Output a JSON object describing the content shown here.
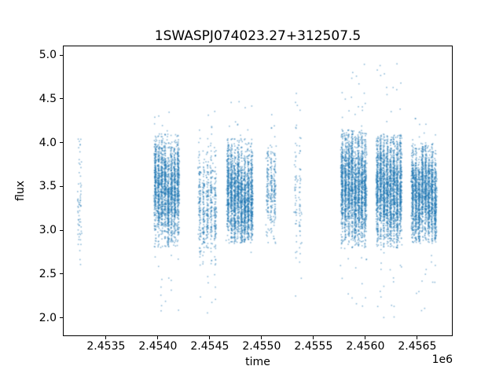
{
  "chart_data": {
    "type": "scatter",
    "title": "1SWASPJ074023.27+312507.5",
    "xlabel": "time",
    "ylabel": "flux",
    "x_offset_text": "1e6",
    "xlim": [
      2453084,
      2456842
    ],
    "ylim": [
      1.79,
      5.11
    ],
    "grid": false,
    "legend": null,
    "marker_color": "#1f77b4",
    "marker_alpha": 0.5,
    "marker_size_px": 1.6,
    "xticks": [
      {
        "label": "2.4535",
        "value": 2453500
      },
      {
        "label": "2.4540",
        "value": 2454000
      },
      {
        "label": "2.4545",
        "value": 2454500
      },
      {
        "label": "2.4550",
        "value": 2455000
      },
      {
        "label": "2.4555",
        "value": 2455500
      },
      {
        "label": "2.4560",
        "value": 2456000
      },
      {
        "label": "2.4565",
        "value": 2456500
      }
    ],
    "yticks": [
      {
        "label": "2.0",
        "value": 2.0
      },
      {
        "label": "2.5",
        "value": 2.5
      },
      {
        "label": "3.0",
        "value": 3.0
      },
      {
        "label": "3.5",
        "value": 3.5
      },
      {
        "label": "4.0",
        "value": 4.0
      },
      {
        "label": "4.5",
        "value": 4.5
      },
      {
        "label": "5.0",
        "value": 5.0
      }
    ],
    "clusters": [
      {
        "t0": 2453225,
        "t1": 2453265,
        "nights": 2,
        "per_night": 30,
        "mean": 3.35,
        "sigma": 0.38,
        "lo": 2.6,
        "hi": 4.1,
        "tails": 4,
        "tail_lo": 2.6,
        "tail_hi": 4.1
      },
      {
        "t0": 2453960,
        "t1": 2454210,
        "nights": 8,
        "per_night": 260,
        "mean": 3.45,
        "sigma": 0.28,
        "lo": 2.8,
        "hi": 4.1,
        "tails": 40,
        "tail_lo": 2.05,
        "tail_hi": 4.35
      },
      {
        "t0": 2454385,
        "t1": 2454570,
        "nights": 5,
        "per_night": 110,
        "mean": 3.3,
        "sigma": 0.33,
        "lo": 2.55,
        "hi": 4.05,
        "tails": 28,
        "tail_lo": 1.95,
        "tail_hi": 4.42
      },
      {
        "t0": 2454660,
        "t1": 2454920,
        "nights": 8,
        "per_night": 280,
        "mean": 3.42,
        "sigma": 0.28,
        "lo": 2.85,
        "hi": 4.05,
        "tails": 32,
        "tail_lo": 2.55,
        "tail_hi": 4.62
      },
      {
        "t0": 2455040,
        "t1": 2455145,
        "nights": 3,
        "per_night": 90,
        "mean": 3.45,
        "sigma": 0.3,
        "lo": 2.85,
        "hi": 4.0,
        "tails": 16,
        "tail_lo": 2.55,
        "tail_hi": 4.4
      },
      {
        "t0": 2455310,
        "t1": 2455390,
        "nights": 2,
        "per_night": 40,
        "mean": 3.4,
        "sigma": 0.5,
        "lo": 2.6,
        "hi": 4.2,
        "tails": 14,
        "tail_lo": 2.22,
        "tail_hi": 4.58
      },
      {
        "t0": 2455760,
        "t1": 2456015,
        "nights": 8,
        "per_night": 300,
        "mean": 3.5,
        "sigma": 0.33,
        "lo": 2.8,
        "hi": 4.15,
        "tails": 50,
        "tail_lo": 1.92,
        "tail_hi": 4.9
      },
      {
        "t0": 2456100,
        "t1": 2456355,
        "nights": 8,
        "per_night": 300,
        "mean": 3.45,
        "sigma": 0.33,
        "lo": 2.8,
        "hi": 4.1,
        "tails": 50,
        "tail_lo": 1.98,
        "tail_hi": 4.93
      },
      {
        "t0": 2456440,
        "t1": 2456690,
        "nights": 8,
        "per_night": 270,
        "mean": 3.38,
        "sigma": 0.28,
        "lo": 2.85,
        "hi": 4.0,
        "tails": 34,
        "tail_lo": 2.02,
        "tail_hi": 4.28
      }
    ]
  }
}
